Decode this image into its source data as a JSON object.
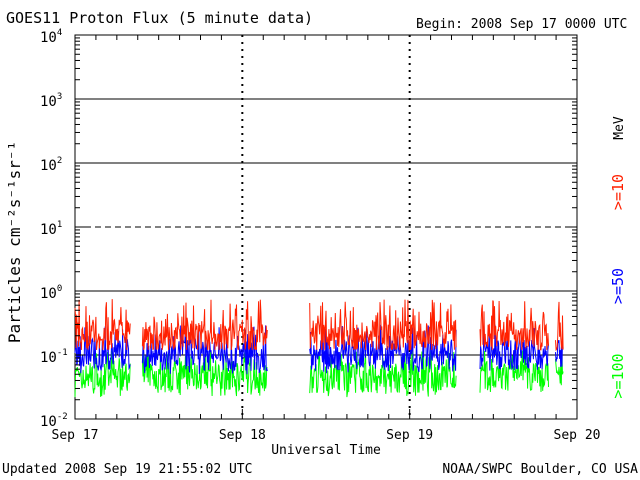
{
  "chart_data": {
    "type": "line",
    "title": "GOES11 Proton Flux (5 minute data)",
    "begin_label": "Begin: 2008 Sep 17 0000 UTC",
    "xlabel": "Universal Time",
    "ylabel": "Particles cm⁻²s⁻¹sr⁻¹",
    "y_scale": "log",
    "ylim": [
      0.01,
      10000
    ],
    "y_ticks": [
      {
        "value": 10000,
        "base": "10",
        "exp": "4"
      },
      {
        "value": 1000,
        "base": "10",
        "exp": "3"
      },
      {
        "value": 100,
        "base": "10",
        "exp": "2"
      },
      {
        "value": 10,
        "base": "10",
        "exp": "1"
      },
      {
        "value": 1,
        "base": "10",
        "exp": "0"
      },
      {
        "value": 0.1,
        "base": "10",
        "exp": "-1"
      },
      {
        "value": 0.01,
        "base": "10",
        "exp": "-2"
      }
    ],
    "x_range_days": [
      0,
      3
    ],
    "x_ticks": [
      {
        "day": 0,
        "label": "Sep 17"
      },
      {
        "day": 1,
        "label": "Sep 18"
      },
      {
        "day": 2,
        "label": "Sep 19"
      },
      {
        "day": 3,
        "label": "Sep 20"
      }
    ],
    "threshold_lines": [
      {
        "value": 1000,
        "style": "solid"
      },
      {
        "value": 100,
        "style": "solid"
      },
      {
        "value": 10,
        "style": "dashed"
      },
      {
        "value": 1,
        "style": "solid"
      },
      {
        "value": 0.1,
        "style": "solid"
      }
    ],
    "data_gaps_days": [
      [
        0.33,
        0.4
      ],
      [
        1.15,
        1.4
      ],
      [
        2.28,
        2.42
      ],
      [
        2.83,
        2.87
      ]
    ],
    "data_end_day": 2.92,
    "legend_unit": "MeV",
    "series": [
      {
        "name": ">=10",
        "color": "#ff2000",
        "typical": 0.2,
        "min": 0.12,
        "max": 0.75
      },
      {
        "name": ">=50",
        "color": "#0000ff",
        "typical": 0.1,
        "min": 0.05,
        "max": 0.3
      },
      {
        "name": ">=100",
        "color": "#00ff00",
        "typical": 0.045,
        "min": 0.022,
        "max": 0.12
      }
    ]
  },
  "footer": {
    "updated": "Updated 2008 Sep 19 21:55:02 UTC",
    "credit": "NOAA/SWPC Boulder, CO USA"
  }
}
